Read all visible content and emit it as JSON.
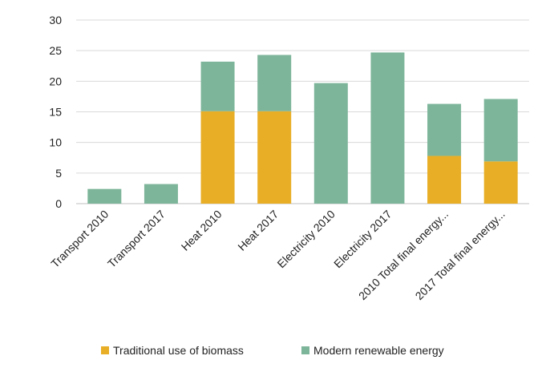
{
  "chart_data": {
    "type": "bar",
    "stacked": true,
    "categories": [
      "Transport 2010",
      "Transport 2017",
      "Heat 2010",
      "Heat 2017",
      "Electricity 2010",
      "Electricity 2017",
      "2010 Total final energy...",
      "2017 Total final energy..."
    ],
    "series": [
      {
        "name": "Traditional use of biomass",
        "color": "#E8AE25",
        "values": [
          0,
          0,
          15.1,
          15.1,
          0,
          0,
          7.8,
          6.9
        ]
      },
      {
        "name": "Modern renewable energy",
        "color": "#7DB59A",
        "values": [
          2.4,
          3.2,
          8.1,
          9.2,
          19.7,
          24.7,
          8.5,
          10.2
        ]
      }
    ],
    "ylim": [
      0,
      30
    ],
    "yticks": [
      "0",
      "5",
      "10",
      "15",
      "20",
      "25",
      "30"
    ],
    "title": "",
    "xlabel": "",
    "ylabel": "",
    "grid": true,
    "legend_position": "bottom"
  }
}
